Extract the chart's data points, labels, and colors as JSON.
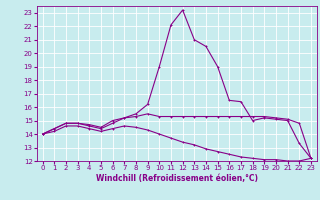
{
  "xlabel": "Windchill (Refroidissement éolien,°C)",
  "bg_color": "#c8ecee",
  "line_color": "#880088",
  "grid_color": "#ffffff",
  "xlim": [
    -0.5,
    23.5
  ],
  "ylim": [
    12,
    23.5
  ],
  "yticks": [
    12,
    13,
    14,
    15,
    16,
    17,
    18,
    19,
    20,
    21,
    22,
    23
  ],
  "xticks": [
    0,
    1,
    2,
    3,
    4,
    5,
    6,
    7,
    8,
    9,
    10,
    11,
    12,
    13,
    14,
    15,
    16,
    17,
    18,
    19,
    20,
    21,
    22,
    23
  ],
  "series1_x": [
    0,
    1,
    2,
    3,
    4,
    5,
    6,
    7,
    8,
    9,
    10,
    11,
    12,
    13,
    14,
    15,
    16,
    17,
    18,
    19,
    20,
    21,
    22,
    23
  ],
  "series1_y": [
    14.0,
    14.4,
    14.8,
    14.8,
    14.7,
    14.5,
    15.0,
    15.2,
    15.3,
    15.5,
    15.3,
    15.3,
    15.3,
    15.3,
    15.3,
    15.3,
    15.3,
    15.3,
    15.3,
    15.3,
    15.2,
    15.1,
    14.8,
    12.2
  ],
  "series2_x": [
    0,
    1,
    2,
    3,
    4,
    5,
    6,
    7,
    8,
    9,
    10,
    11,
    12,
    13,
    14,
    15,
    16,
    17,
    18,
    19,
    20,
    21,
    22,
    23
  ],
  "series2_y": [
    14.0,
    14.4,
    14.8,
    14.8,
    14.6,
    14.4,
    14.8,
    15.2,
    15.5,
    16.2,
    19.0,
    22.1,
    23.2,
    21.0,
    20.5,
    19.0,
    16.5,
    16.4,
    15.0,
    15.2,
    15.1,
    15.0,
    13.3,
    12.2
  ],
  "series3_x": [
    0,
    1,
    2,
    3,
    4,
    5,
    6,
    7,
    8,
    9,
    10,
    11,
    12,
    13,
    14,
    15,
    16,
    17,
    18,
    19,
    20,
    21,
    22,
    23
  ],
  "series3_y": [
    14.0,
    14.2,
    14.6,
    14.6,
    14.4,
    14.2,
    14.4,
    14.6,
    14.5,
    14.3,
    14.0,
    13.7,
    13.4,
    13.2,
    12.9,
    12.7,
    12.5,
    12.3,
    12.2,
    12.1,
    12.1,
    12.0,
    12.0,
    12.2
  ],
  "xlabel_fontsize": 5.5,
  "tick_fontsize": 5.0,
  "line_width": 0.8,
  "marker_size": 2.0
}
